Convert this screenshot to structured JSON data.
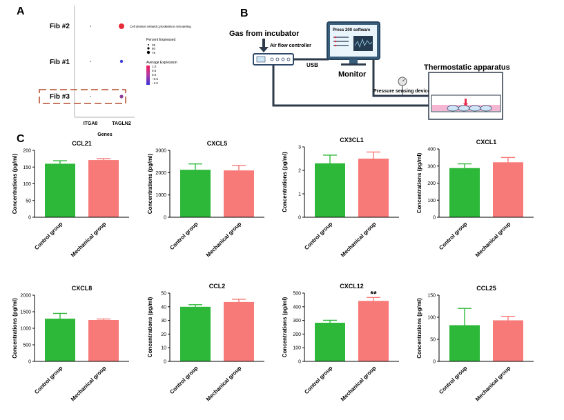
{
  "panel_labels": {
    "a": "A",
    "b": "B",
    "c": "C"
  },
  "panel_a": {
    "rows": [
      "Fib #2",
      "Fib #1",
      "Fib #3"
    ],
    "genes": [
      "ITGA8",
      "TAGLN2"
    ],
    "xlabel": "Genes",
    "annotation": "Cell division related cytoskeleton remodeling",
    "pct_title": "Percent Expressed",
    "pct_levels": [
      "25",
      "50",
      "75"
    ],
    "avg_title": "Average Expression",
    "avg_ticks": [
      "1.0",
      "0.5",
      "0.0",
      "−0.5",
      "−1.0"
    ],
    "colors": {
      "high": "#e8293a",
      "low": "#3b3bcf"
    }
  },
  "panel_b": {
    "gas_label": "Gas from incubator",
    "airflow_label": "Air flow controller",
    "usb_label": "USB",
    "monitor_label": "Monitor",
    "software_label": "Press 200 software",
    "thermo_label": "Thermostatic apparatus",
    "pressure_label": "Pressure sensing device"
  },
  "colors": {
    "control": "#2db83a",
    "mechanical": "#f77a78",
    "axis": "#000000"
  },
  "chart_data": [
    {
      "type": "bar",
      "title": "CCL21",
      "ylabel": "Concentrations (pg/ml)",
      "categories": [
        "Control group",
        "Mechanical group"
      ],
      "values": [
        160,
        171
      ],
      "errors": [
        9,
        4
      ],
      "ylim": [
        0,
        200
      ],
      "yticks": [
        0,
        50,
        100,
        150,
        200
      ],
      "annotation": ""
    },
    {
      "type": "bar",
      "title": "CXCL5",
      "ylabel": "Concentrations (pg/ml)",
      "categories": [
        "Control group",
        "Mechanical group"
      ],
      "values": [
        2130,
        2100
      ],
      "errors": [
        260,
        230
      ],
      "ylim": [
        0,
        3000
      ],
      "yticks": [
        0,
        1000,
        2000,
        3000
      ],
      "annotation": ""
    },
    {
      "type": "bar",
      "title": "CX3CL1",
      "ylabel": "Concentrations (pg/ml)",
      "categories": [
        "Control group",
        "Mechanical group"
      ],
      "values": [
        2.3,
        2.5
      ],
      "errors": [
        0.35,
        0.28
      ],
      "ylim": [
        0,
        3
      ],
      "yticks": [
        0,
        1,
        2,
        3
      ],
      "annotation": ""
    },
    {
      "type": "bar",
      "title": "CXCL1",
      "ylabel": "Concentrations (pg/ml)",
      "categories": [
        "Control group",
        "Mechanical group"
      ],
      "values": [
        288,
        322
      ],
      "errors": [
        25,
        28
      ],
      "ylim": [
        0,
        400
      ],
      "yticks": [
        0,
        100,
        200,
        300,
        400
      ],
      "annotation": ""
    },
    {
      "type": "bar",
      "title": "CXCL8",
      "ylabel": "Concentrations (pg/ml)",
      "categories": [
        "Control group",
        "Mechanical group"
      ],
      "values": [
        1290,
        1250
      ],
      "errors": [
        160,
        30
      ],
      "ylim": [
        0,
        2000
      ],
      "yticks": [
        0,
        500,
        1000,
        1500,
        2000
      ],
      "annotation": ""
    },
    {
      "type": "bar",
      "title": "CCL2",
      "ylabel": "Concentrations (pg/ml)",
      "categories": [
        "Control group",
        "Mechanical group"
      ],
      "values": [
        40,
        43.5
      ],
      "errors": [
        1.5,
        2
      ],
      "ylim": [
        0,
        50
      ],
      "yticks": [
        0,
        10,
        20,
        30,
        40,
        50
      ],
      "annotation": ""
    },
    {
      "type": "bar",
      "title": "CXCL12",
      "ylabel": "Concentrations (pg/ml)",
      "categories": [
        "Control group",
        "Mechanical group"
      ],
      "values": [
        283,
        443
      ],
      "errors": [
        18,
        25
      ],
      "ylim": [
        0,
        500
      ],
      "yticks": [
        0,
        100,
        200,
        300,
        400,
        500
      ],
      "annotation": "**"
    },
    {
      "type": "bar",
      "title": "CCL25",
      "ylabel": "Concentrations (pg/ml)",
      "categories": [
        "Control group",
        "Mechanical group"
      ],
      "values": [
        82,
        93
      ],
      "errors": [
        38,
        9
      ],
      "ylim": [
        0,
        150
      ],
      "yticks": [
        0,
        50,
        100,
        150
      ],
      "annotation": ""
    }
  ]
}
